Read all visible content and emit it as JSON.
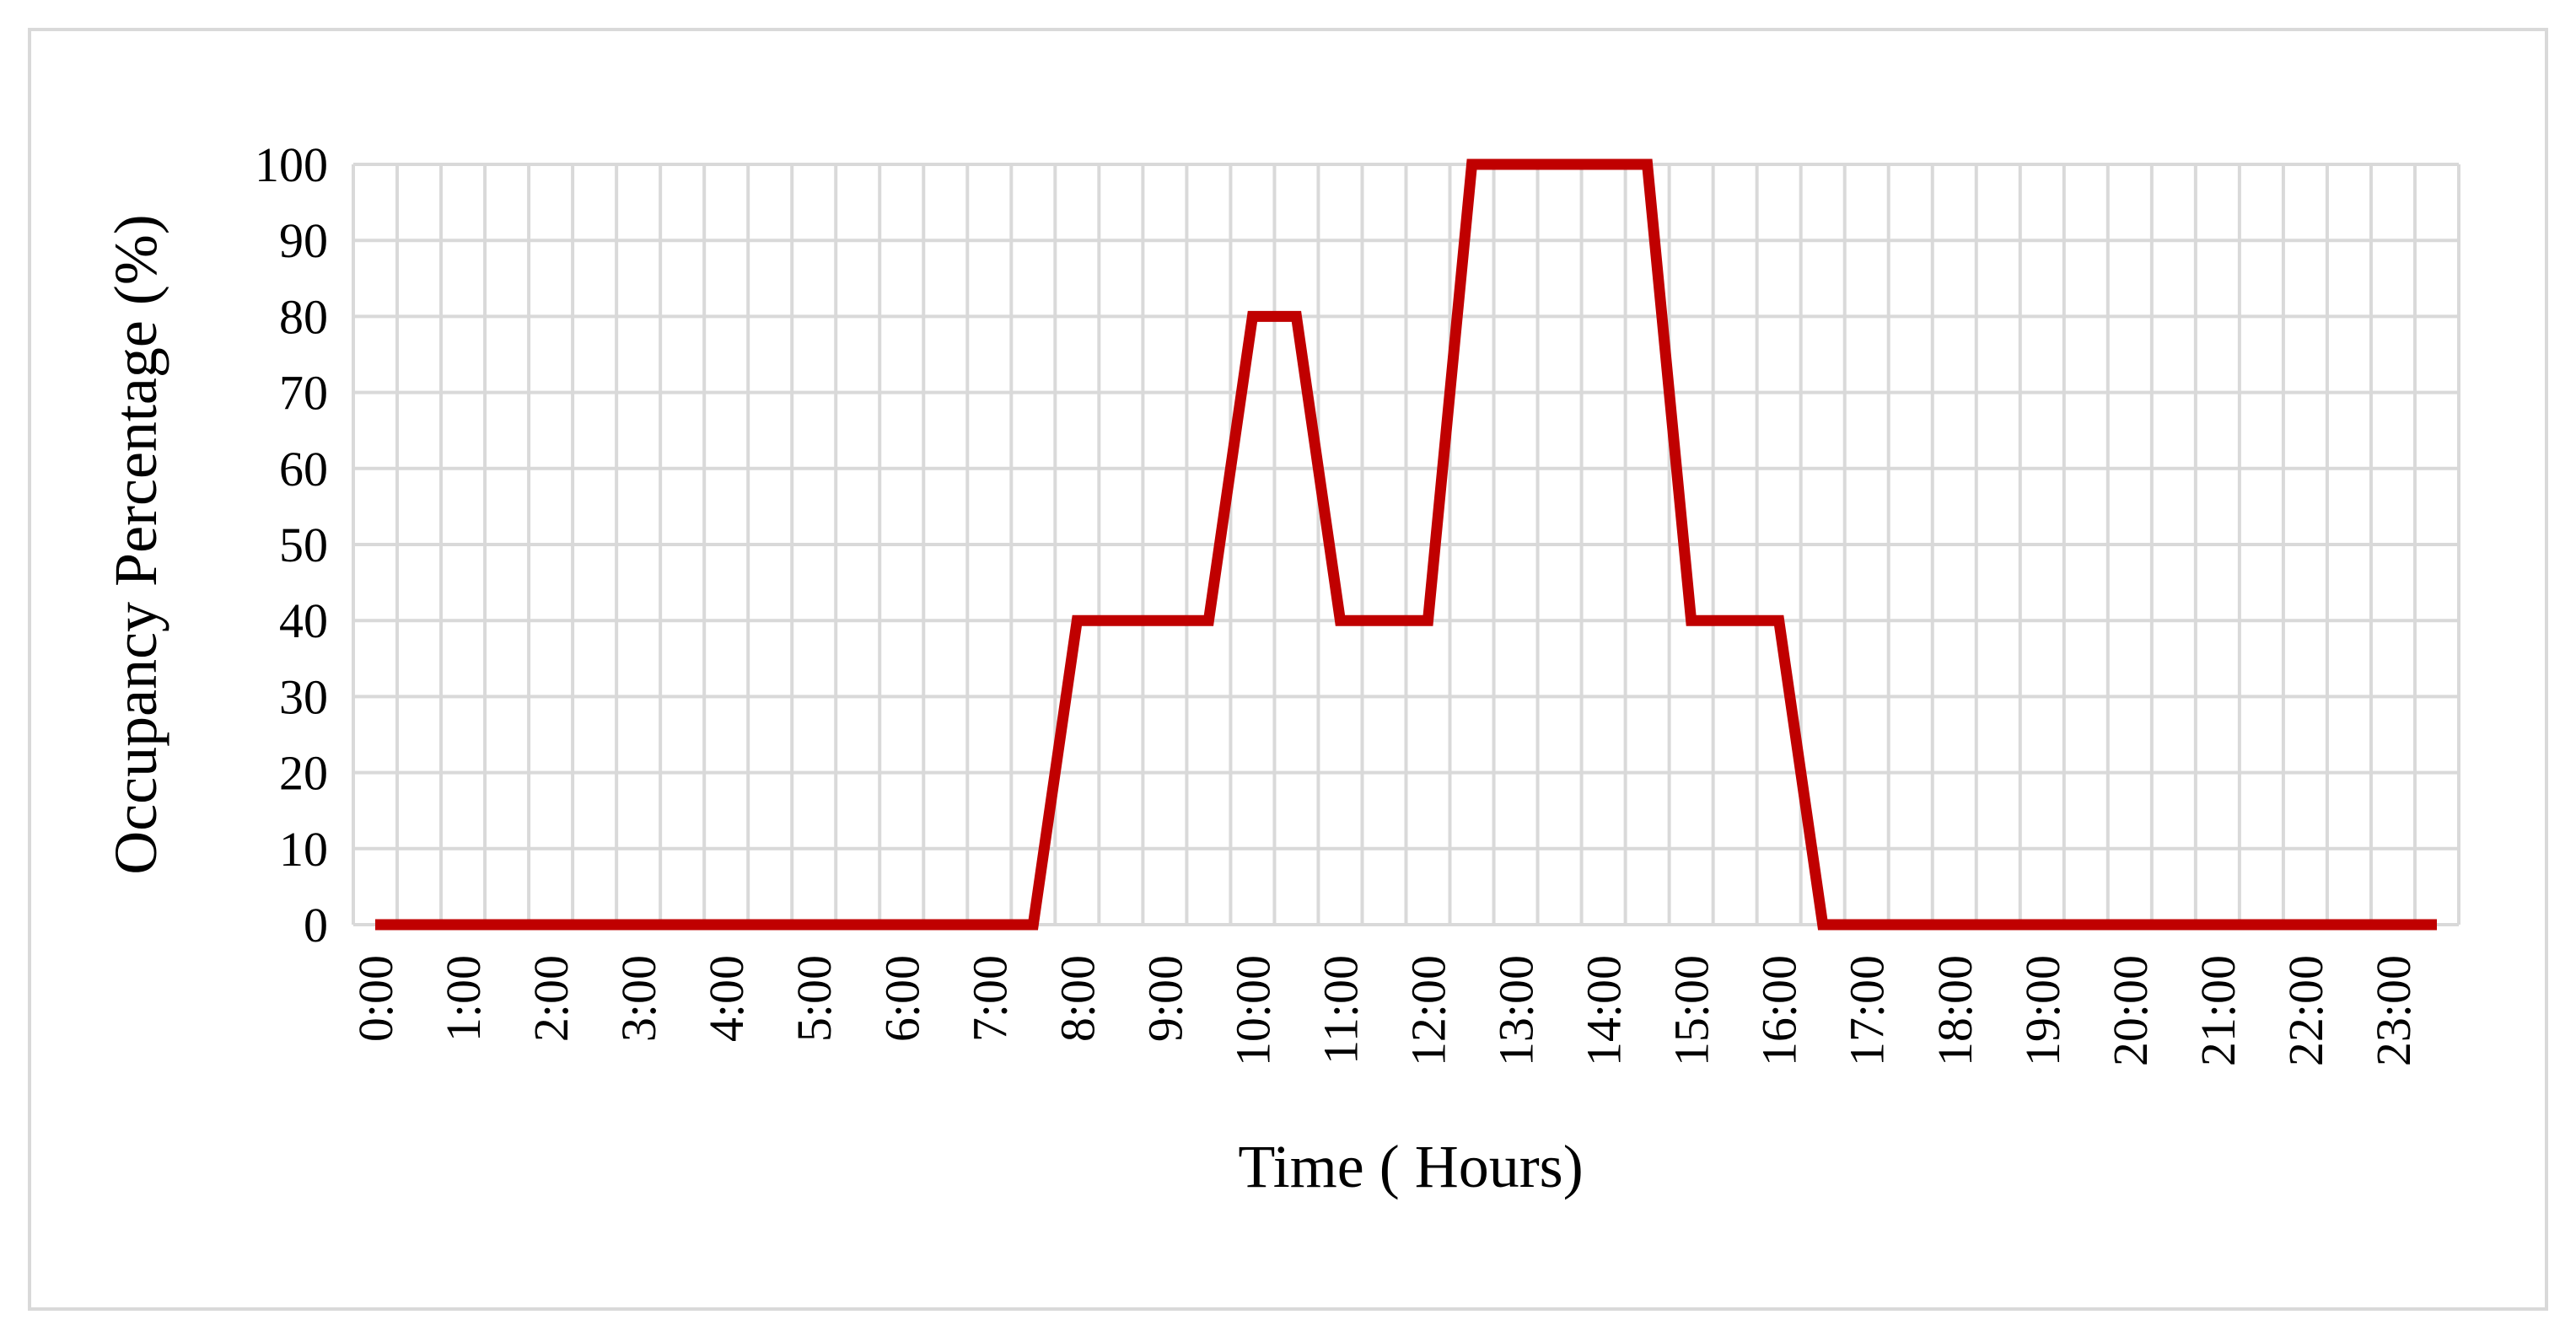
{
  "chart_data": {
    "type": "line",
    "x_label": "Time ( Hours)",
    "y_label": "Occupancy Percentage (%)",
    "categories": [
      "0:00",
      null,
      "1:00",
      null,
      "2:00",
      null,
      "3:00",
      null,
      "4:00",
      null,
      "5:00",
      null,
      "6:00",
      null,
      "7:00",
      null,
      "8:00",
      null,
      "9:00",
      null,
      "10:00",
      null,
      "11:00",
      null,
      "12:00",
      null,
      "13:00",
      null,
      "14:00",
      null,
      "15:00",
      null,
      "16:00",
      null,
      "17:00",
      null,
      "18:00",
      null,
      "19:00",
      null,
      "20:00",
      null,
      "21:00",
      null,
      "22:00",
      null,
      "23:00",
      null
    ],
    "values": [
      0,
      0,
      0,
      0,
      0,
      0,
      0,
      0,
      0,
      0,
      0,
      0,
      0,
      0,
      0,
      0,
      40,
      40,
      40,
      40,
      80,
      80,
      40,
      40,
      40,
      100,
      100,
      100,
      100,
      100,
      40,
      40,
      40,
      0,
      0,
      0,
      0,
      0,
      0,
      0,
      0,
      0,
      0,
      0,
      0,
      0,
      0,
      0
    ],
    "color": "#c00000",
    "ylim": [
      0,
      100
    ],
    "yticks": [
      0,
      10,
      20,
      30,
      40,
      50,
      60,
      70,
      80,
      90,
      100
    ],
    "grid": true
  }
}
